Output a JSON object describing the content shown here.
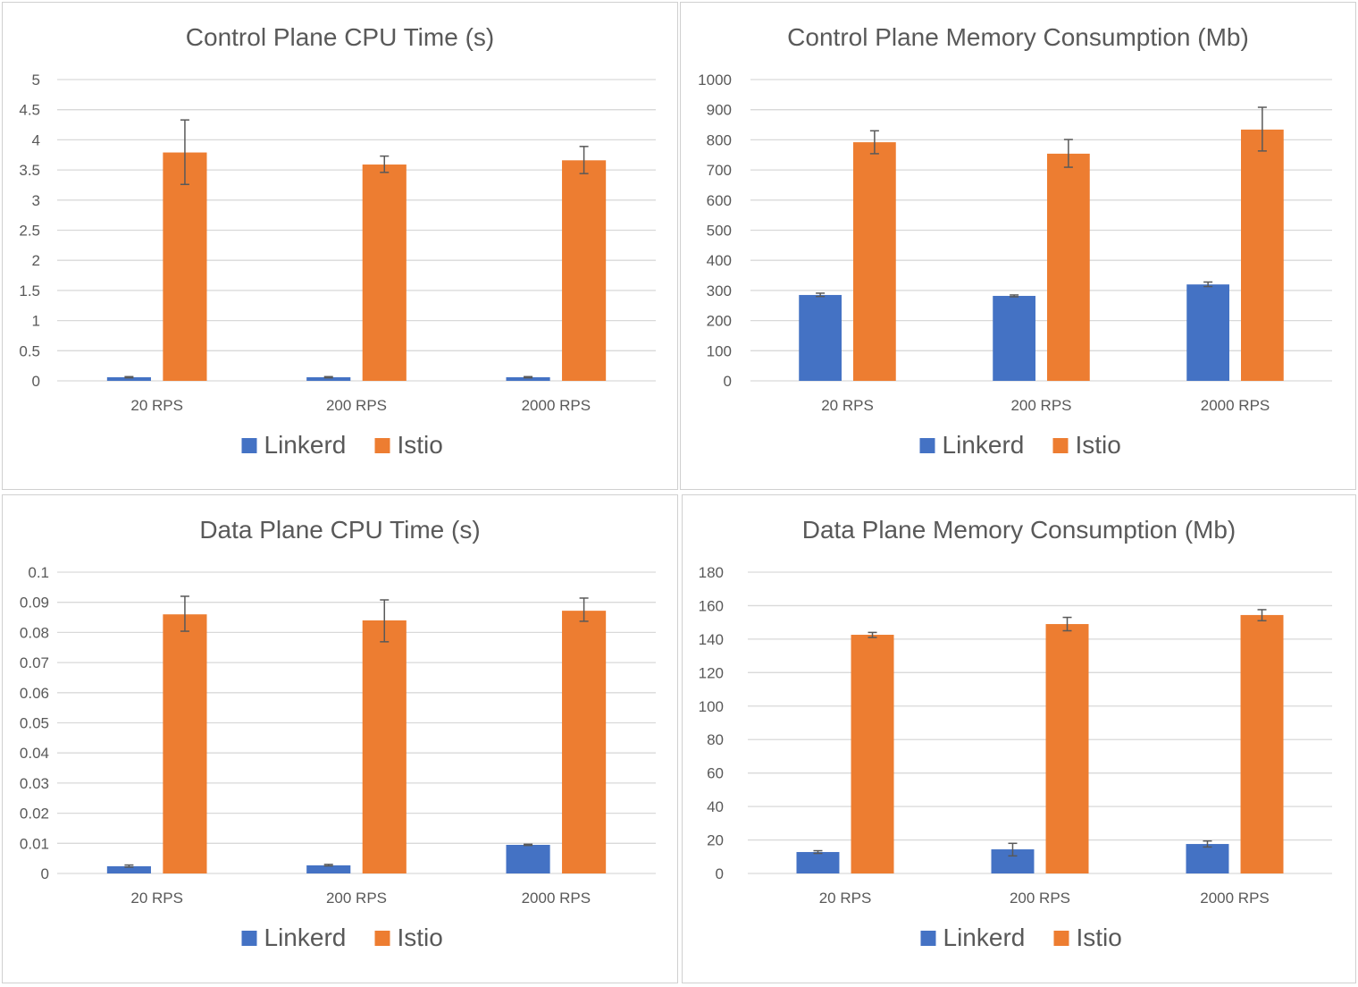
{
  "colors": {
    "Linkerd": "#4472c4",
    "Istio": "#ed7d31",
    "grid": "#d9d9d9",
    "errorbar": "#595959"
  },
  "chart_data": [
    {
      "type": "bar",
      "title": "Control Plane CPU Time (s)",
      "categories": [
        "20 RPS",
        "200 RPS",
        "2000 RPS"
      ],
      "ylim": [
        0,
        5
      ],
      "yticks": [
        "0",
        "0.5",
        "1",
        "1.5",
        "2",
        "2.5",
        "3",
        "3.5",
        "4",
        "4.5",
        "5"
      ],
      "grid": true,
      "legend": "bottom",
      "series": [
        {
          "name": "Linkerd",
          "values": [
            0.06,
            0.06,
            0.06
          ],
          "error_low": [
            0.05,
            0.05,
            0.05
          ],
          "error_high": [
            0.07,
            0.07,
            0.07
          ]
        },
        {
          "name": "Istio",
          "values": [
            3.79,
            3.59,
            3.66
          ],
          "error_low": [
            3.26,
            3.46,
            3.44
          ],
          "error_high": [
            4.33,
            3.73,
            3.89
          ]
        }
      ]
    },
    {
      "type": "bar",
      "title": "Control Plane Memory Consumption (Mb)",
      "categories": [
        "20 RPS",
        "200 RPS",
        "2000 RPS"
      ],
      "ylim": [
        0,
        1000
      ],
      "yticks": [
        "0",
        "100",
        "200",
        "300",
        "400",
        "500",
        "600",
        "700",
        "800",
        "900",
        "1000"
      ],
      "grid": true,
      "legend": "bottom",
      "series": [
        {
          "name": "Linkerd",
          "values": [
            285,
            282,
            320
          ],
          "error_low": [
            280,
            279,
            313
          ],
          "error_high": [
            291,
            285,
            328
          ]
        },
        {
          "name": "Istio",
          "values": [
            792,
            754,
            834
          ],
          "error_low": [
            754,
            709,
            763
          ],
          "error_high": [
            830,
            801,
            908
          ]
        }
      ]
    },
    {
      "type": "bar",
      "title": "Data Plane CPU Time (s)",
      "categories": [
        "20 RPS",
        "200 RPS",
        "2000 RPS"
      ],
      "ylim": [
        0,
        0.1
      ],
      "yticks": [
        "0",
        "0.01",
        "0.02",
        "0.03",
        "0.04",
        "0.05",
        "0.06",
        "0.07",
        "0.08",
        "0.09",
        "0.1"
      ],
      "grid": true,
      "legend": "bottom",
      "series": [
        {
          "name": "Linkerd",
          "values": [
            0.0024,
            0.0027,
            0.0095
          ],
          "error_low": [
            0.0021,
            0.0025,
            0.0093
          ],
          "error_high": [
            0.0028,
            0.003,
            0.0097
          ]
        },
        {
          "name": "Istio",
          "values": [
            0.086,
            0.084,
            0.0872
          ],
          "error_low": [
            0.0804,
            0.0769,
            0.0837
          ],
          "error_high": [
            0.092,
            0.0908,
            0.0914
          ]
        }
      ]
    },
    {
      "type": "bar",
      "title": "Data Plane Memory Consumption (Mb)",
      "categories": [
        "20 RPS",
        "200 RPS",
        "2000 RPS"
      ],
      "ylim": [
        0,
        180
      ],
      "yticks": [
        "0",
        "20",
        "40",
        "60",
        "80",
        "100",
        "120",
        "140",
        "160",
        "180"
      ],
      "grid": true,
      "legend": "bottom",
      "series": [
        {
          "name": "Linkerd",
          "values": [
            12.8,
            14.4,
            17.6
          ],
          "error_low": [
            12,
            10.5,
            15.8
          ],
          "error_high": [
            13.6,
            18,
            19.4
          ]
        },
        {
          "name": "Istio",
          "values": [
            142.6,
            149,
            154.4
          ],
          "error_low": [
            141,
            145,
            151
          ],
          "error_high": [
            144,
            153,
            157.6
          ]
        }
      ]
    }
  ]
}
